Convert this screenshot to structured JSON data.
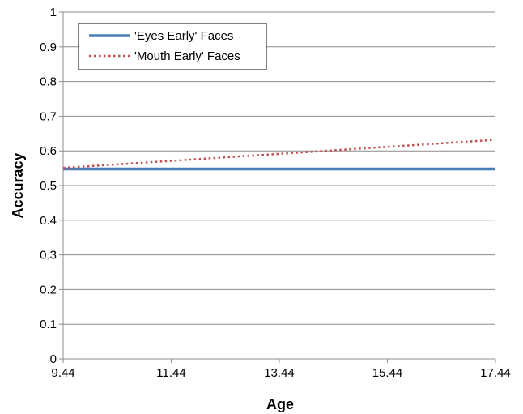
{
  "chart_data": {
    "type": "line",
    "title": "",
    "xlabel": "Age",
    "ylabel": "Accuracy",
    "xlim": [
      9.44,
      17.44
    ],
    "ylim": [
      0,
      1
    ],
    "x_ticks": [
      "9.44",
      "11.44",
      "13.44",
      "15.44",
      "17.44"
    ],
    "y_ticks": [
      "0",
      "0.1",
      "0.2",
      "0.3",
      "0.4",
      "0.5",
      "0.6",
      "0.7",
      "0.8",
      "0.9",
      "1"
    ],
    "grid": "horizontal",
    "legend_position": "top-left",
    "series": [
      {
        "name": "'Eyes Early' Faces",
        "x": [
          9.44,
          17.44
        ],
        "y": [
          0.548,
          0.548
        ],
        "color": "#4A7EBB",
        "style": "solid"
      },
      {
        "name": "'Mouth Early' Faces",
        "x": [
          9.44,
          17.44
        ],
        "y": [
          0.551,
          0.632
        ],
        "color": "#C0504D",
        "style": "dotted"
      }
    ]
  }
}
